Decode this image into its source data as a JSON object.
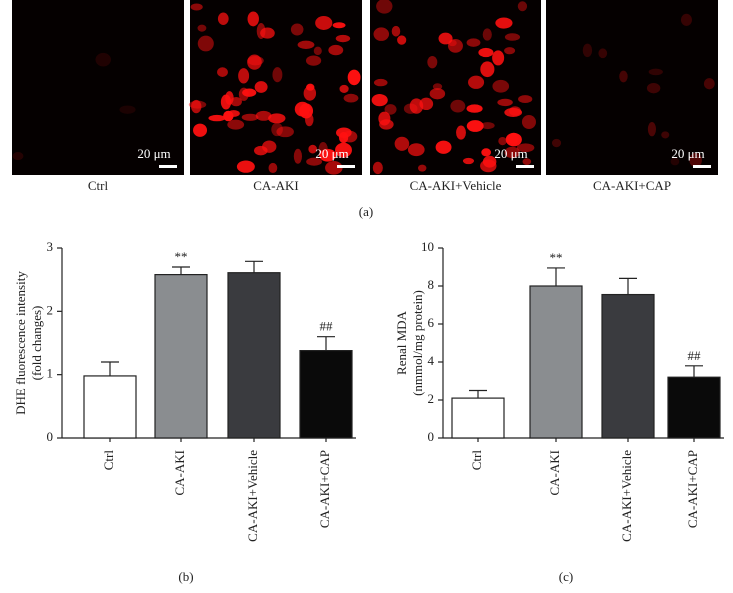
{
  "panel_a": {
    "labels": [
      "Ctrl",
      "CA-AKI",
      "CA-AKI+Vehicle",
      "CA-AKI+CAP"
    ],
    "scale_bar": "20 μm",
    "caption": "(a)"
  },
  "chart_data": [
    {
      "type": "bar",
      "caption": "(b)",
      "ylabel": [
        "DHE fluorescence intensity",
        "(fold changes)"
      ],
      "categories": [
        "Ctrl",
        "CA-AKI",
        "CA-AKI+Vehicle",
        "CA-AKI+CAP"
      ],
      "values": [
        0.98,
        2.58,
        2.61,
        1.38
      ],
      "errors": [
        0.22,
        0.12,
        0.18,
        0.22
      ],
      "annotations": [
        null,
        "**",
        null,
        "##"
      ],
      "colors": [
        "#ffffff",
        "#8a8d90",
        "#3a3b3f",
        "#0a0a0a"
      ],
      "ylim": [
        0,
        3
      ],
      "yticks": [
        0,
        1,
        2,
        3
      ]
    },
    {
      "type": "bar",
      "caption": "(c)",
      "ylabel": [
        "Renal MDA",
        "(nmmol/mg protein)"
      ],
      "categories": [
        "Ctrl",
        "CA-AKI",
        "CA-AKI+Vehicle",
        "CA-AKI+CAP"
      ],
      "values": [
        2.1,
        8.0,
        7.55,
        3.2
      ],
      "errors": [
        0.4,
        0.95,
        0.85,
        0.6
      ],
      "annotations": [
        null,
        "**",
        null,
        "##"
      ],
      "colors": [
        "#ffffff",
        "#8a8d90",
        "#3a3b3f",
        "#0a0a0a"
      ],
      "ylim": [
        0,
        10
      ],
      "yticks": [
        0,
        2,
        4,
        6,
        8,
        10
      ]
    }
  ]
}
